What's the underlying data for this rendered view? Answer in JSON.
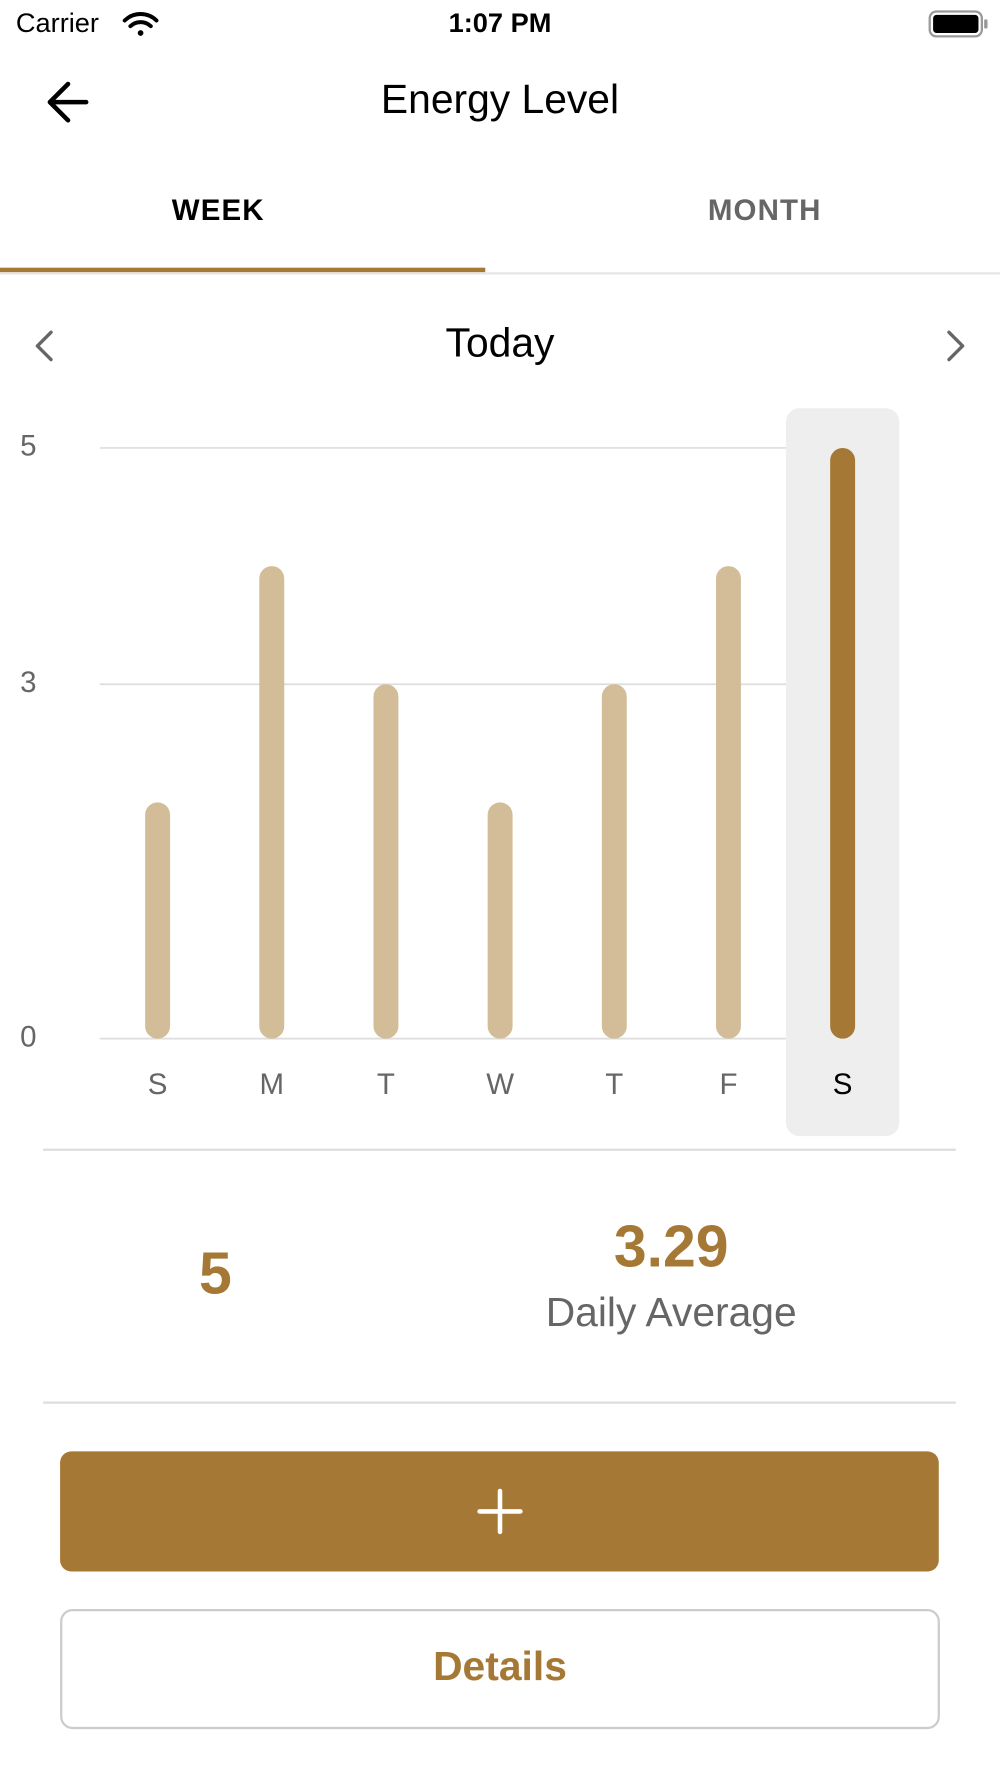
{
  "status_bar": {
    "carrier": "Carrier",
    "time": "1:07 PM"
  },
  "header": {
    "title": "Energy Level"
  },
  "tabs": {
    "items": [
      "WEEK",
      "MONTH"
    ],
    "selected": 0
  },
  "period": "Today",
  "chart_data": {
    "type": "bar",
    "categories": [
      "S",
      "M",
      "T",
      "W",
      "T",
      "F",
      "S"
    ],
    "values": [
      2,
      4,
      3,
      2,
      3,
      4,
      5
    ],
    "ylim": [
      0,
      5
    ],
    "yticks": [
      0,
      3,
      5
    ],
    "grid": true,
    "color": "#d2bd98",
    "selected_index": 6,
    "selected_color": "#a57835"
  },
  "stats": {
    "selected_value": 5,
    "average": 3.29,
    "average_label": "Daily Average"
  },
  "buttons": {
    "details": "Details"
  }
}
